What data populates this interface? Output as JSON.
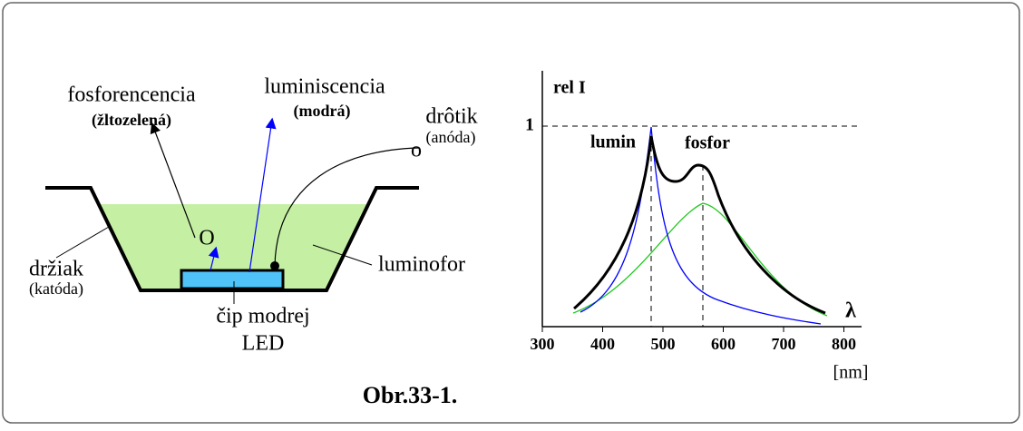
{
  "led": {
    "emission_1": "fosforencencia",
    "emission_1_color": "(žltozelená)",
    "emission_2": "luminiscencia",
    "emission_2_color": "(modrá)",
    "wire": "drôtik",
    "wire_role": "(anóda)",
    "wire_end": "o",
    "particle": "O",
    "holder": "držiak",
    "holder_role": "(katóda)",
    "phosphor": "luminofor",
    "chip_1": "čip modrej",
    "chip_2": "LED"
  },
  "spectrum": {
    "y_label": "rel I",
    "y_mark": "1",
    "peak_1": "lumin",
    "peak_2": "fosfor",
    "x_symbol": "λ",
    "x_unit": "[nm]",
    "xticks": [
      300,
      400,
      500,
      600,
      700,
      800
    ]
  },
  "caption": "Obr.33-1."
}
